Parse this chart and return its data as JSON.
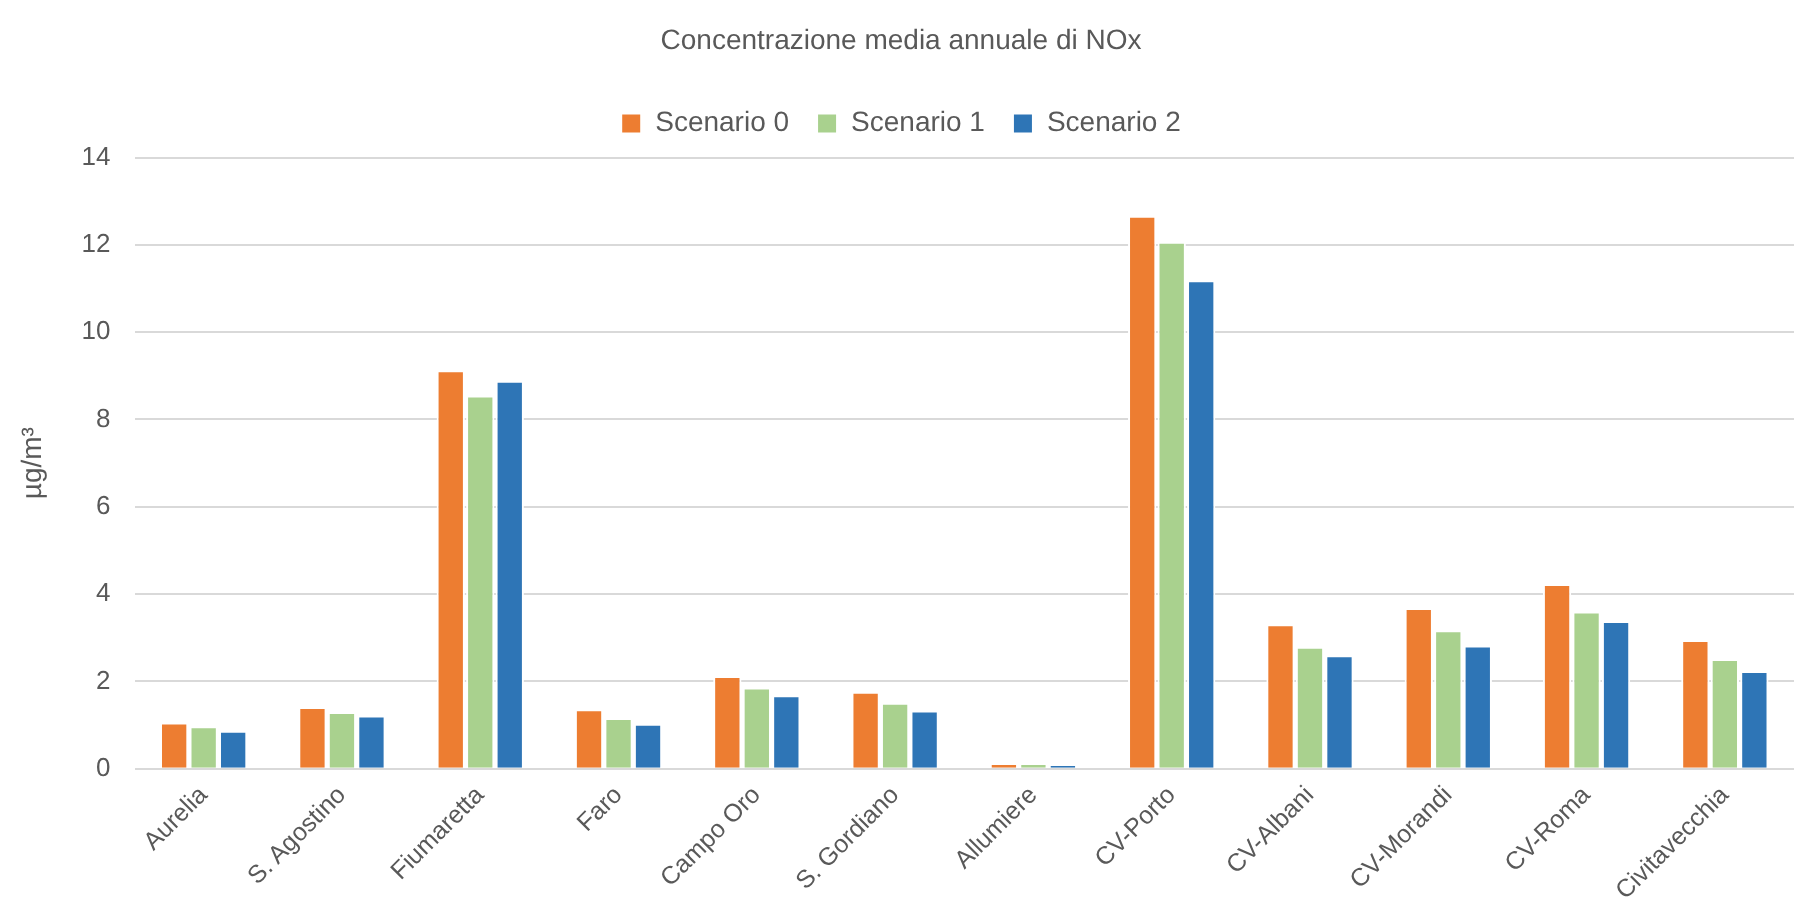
{
  "chart_data": {
    "type": "bar",
    "title": "Concentrazione media annuale di NOx",
    "ylabel": "µg/m³",
    "categories": [
      "Aurelia",
      "S. Agostino",
      "Fiumaretta",
      "Faro",
      "Campo Oro",
      "S. Gordiano",
      "Allumiere",
      "CV-Porto",
      "CV-Albani",
      "CV-Morandi",
      "CV-Roma",
      "Civitavecchia"
    ],
    "series": [
      {
        "name": "Scenario 0",
        "color": "#ed7d31",
        "values": [
          1.06,
          1.41,
          9.13,
          1.36,
          2.12,
          1.76,
          0.13,
          12.67,
          3.31,
          3.68,
          4.23,
          2.95
        ]
      },
      {
        "name": "Scenario 1",
        "color": "#a9d18e",
        "values": [
          0.97,
          1.3,
          8.55,
          1.16,
          1.86,
          1.51,
          0.13,
          12.07,
          2.79,
          3.17,
          3.6,
          2.51
        ]
      },
      {
        "name": "Scenario 2",
        "color": "#2e75b6",
        "values": [
          0.87,
          1.22,
          8.89,
          1.03,
          1.68,
          1.33,
          0.1,
          11.19,
          2.6,
          2.82,
          3.38,
          2.24
        ]
      }
    ],
    "ylim": [
      0,
      14
    ],
    "yticks": [
      0,
      2,
      4,
      6,
      8,
      10,
      12,
      14
    ],
    "grid": "y",
    "legend": "top"
  }
}
